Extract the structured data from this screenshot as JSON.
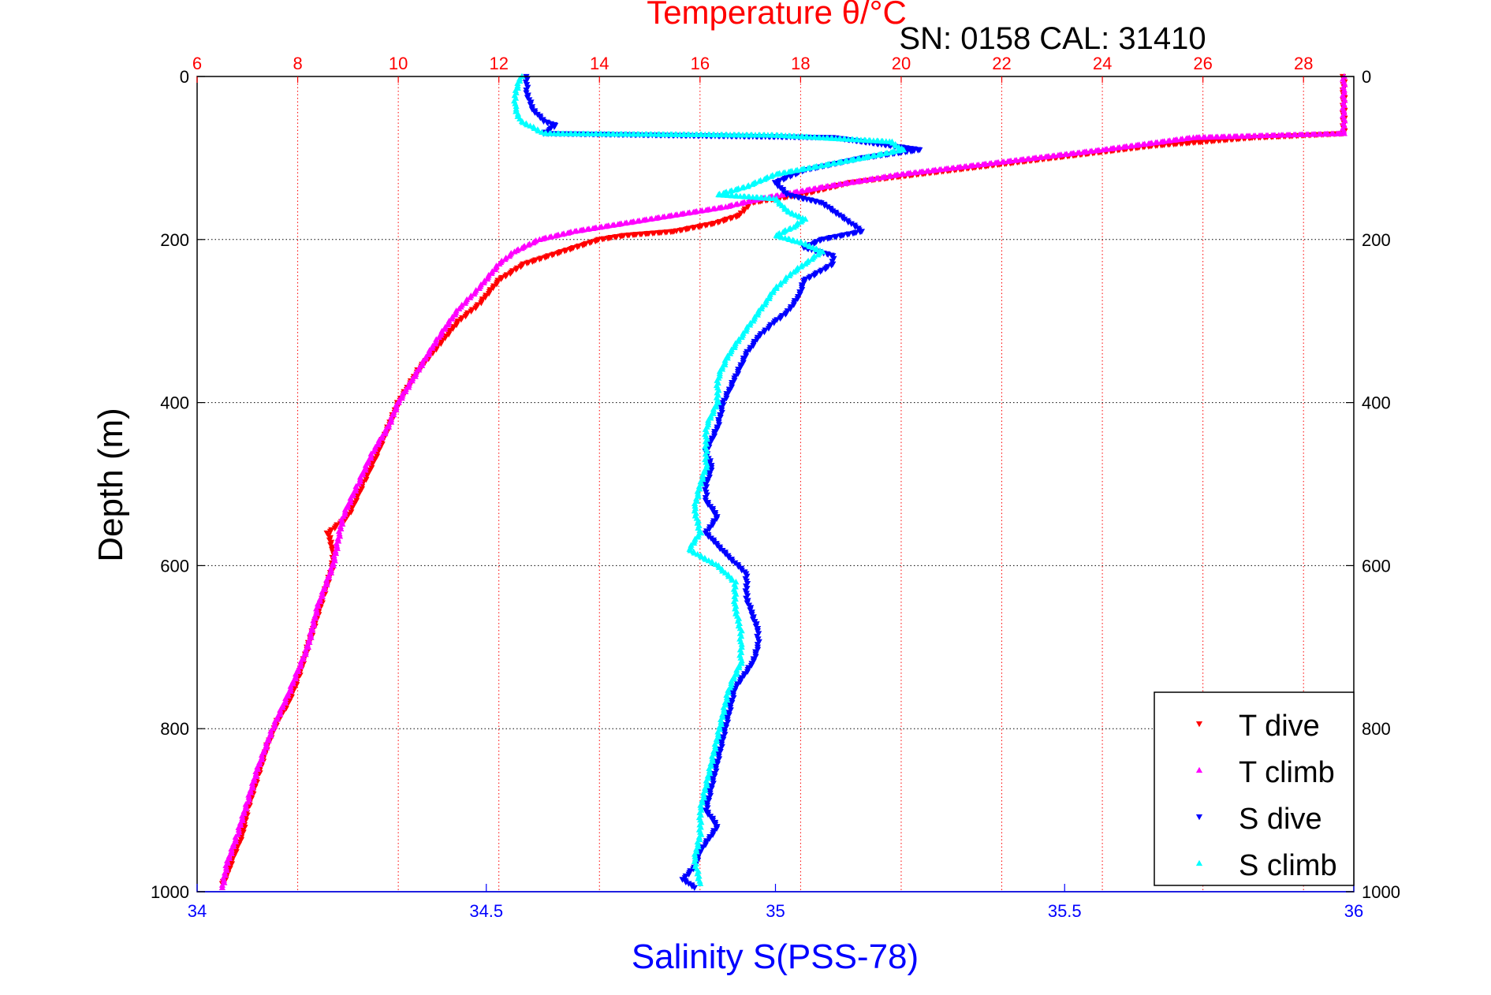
{
  "chart_data": {
    "type": "scatter",
    "title": "Temperature θ/°C",
    "subtitle": "SN: 0158  CAL: 31410",
    "xlabel": "Salinity S(PSS-78)",
    "ylabel": "Depth (m)",
    "depth_range": [
      0,
      1000
    ],
    "depth_inverted": true,
    "depth_ticks": [
      "0",
      "200",
      "400",
      "600",
      "800",
      "1000"
    ],
    "temperature_axis": {
      "position": "top",
      "range": [
        6,
        29
      ],
      "ticks": [
        "6",
        "8",
        "10",
        "12",
        "14",
        "16",
        "18",
        "20",
        "22",
        "24",
        "26",
        "28"
      ],
      "color": "#ff0000"
    },
    "salinity_axis": {
      "position": "bottom",
      "range": [
        34,
        36
      ],
      "ticks": [
        "34",
        "34.5",
        "35",
        "35.5",
        "36"
      ],
      "color": "#0000ff"
    },
    "grid": true,
    "legend_position": "bottom-right",
    "series": [
      {
        "name": "T dive",
        "axis": "temperature",
        "marker": "triangle-down",
        "color": "#ff0000",
        "points": [
          [
            28.8,
            0
          ],
          [
            28.8,
            20
          ],
          [
            28.8,
            45
          ],
          [
            28.8,
            70
          ],
          [
            27.0,
            75
          ],
          [
            25.0,
            85
          ],
          [
            23.0,
            100
          ],
          [
            21.0,
            115
          ],
          [
            19.0,
            130
          ],
          [
            18.0,
            145
          ],
          [
            17.0,
            155
          ],
          [
            16.8,
            170
          ],
          [
            16.3,
            180
          ],
          [
            15.5,
            190
          ],
          [
            14.5,
            195
          ],
          [
            14.0,
            200
          ],
          [
            13.5,
            210
          ],
          [
            13.0,
            220
          ],
          [
            12.5,
            230
          ],
          [
            12.0,
            250
          ],
          [
            11.6,
            280
          ],
          [
            11.2,
            300
          ],
          [
            10.8,
            330
          ],
          [
            10.4,
            360
          ],
          [
            10.0,
            400
          ],
          [
            9.8,
            430
          ],
          [
            9.6,
            460
          ],
          [
            9.3,
            500
          ],
          [
            9.0,
            540
          ],
          [
            8.6,
            560
          ],
          [
            8.7,
            580
          ],
          [
            8.7,
            600
          ],
          [
            8.5,
            640
          ],
          [
            8.3,
            680
          ],
          [
            8.2,
            700
          ],
          [
            8.0,
            740
          ],
          [
            7.8,
            770
          ],
          [
            7.6,
            790
          ],
          [
            7.4,
            820
          ],
          [
            7.2,
            860
          ],
          [
            7.0,
            900
          ],
          [
            6.9,
            930
          ],
          [
            6.7,
            960
          ],
          [
            6.6,
            980
          ],
          [
            6.5,
            990
          ]
        ]
      },
      {
        "name": "T climb",
        "axis": "temperature",
        "marker": "triangle-up",
        "color": "#ff00ff",
        "points": [
          [
            28.8,
            0
          ],
          [
            28.8,
            20
          ],
          [
            28.8,
            45
          ],
          [
            28.8,
            70
          ],
          [
            27.5,
            72
          ],
          [
            25.8,
            75
          ],
          [
            24.0,
            90
          ],
          [
            22.0,
            105
          ],
          [
            20.0,
            120
          ],
          [
            18.5,
            135
          ],
          [
            17.2,
            150
          ],
          [
            16.5,
            160
          ],
          [
            15.5,
            170
          ],
          [
            14.5,
            180
          ],
          [
            14.0,
            185
          ],
          [
            13.5,
            190
          ],
          [
            12.8,
            200
          ],
          [
            12.3,
            215
          ],
          [
            12.0,
            230
          ],
          [
            11.6,
            260
          ],
          [
            11.2,
            285
          ],
          [
            10.8,
            320
          ],
          [
            10.4,
            360
          ],
          [
            10.0,
            400
          ],
          [
            9.8,
            430
          ],
          [
            9.5,
            460
          ],
          [
            9.2,
            500
          ],
          [
            8.9,
            540
          ],
          [
            8.8,
            570
          ],
          [
            8.7,
            600
          ],
          [
            8.4,
            650
          ],
          [
            8.2,
            700
          ],
          [
            8.0,
            730
          ],
          [
            7.8,
            760
          ],
          [
            7.5,
            800
          ],
          [
            7.2,
            850
          ],
          [
            7.0,
            890
          ],
          [
            6.8,
            930
          ],
          [
            6.6,
            965
          ],
          [
            6.5,
            995
          ]
        ]
      },
      {
        "name": "S dive",
        "axis": "salinity",
        "marker": "triangle-down",
        "color": "#0000ff",
        "points": [
          [
            34.57,
            0
          ],
          [
            34.57,
            20
          ],
          [
            34.58,
            40
          ],
          [
            34.6,
            55
          ],
          [
            34.62,
            60
          ],
          [
            34.6,
            70
          ],
          [
            35.1,
            75
          ],
          [
            35.15,
            80
          ],
          [
            35.2,
            85
          ],
          [
            35.25,
            90
          ],
          [
            35.15,
            100
          ],
          [
            35.05,
            115
          ],
          [
            35.0,
            130
          ],
          [
            35.02,
            145
          ],
          [
            35.08,
            155
          ],
          [
            35.1,
            165
          ],
          [
            35.12,
            175
          ],
          [
            35.15,
            190
          ],
          [
            35.08,
            200
          ],
          [
            35.05,
            210
          ],
          [
            35.1,
            220
          ],
          [
            35.1,
            230
          ],
          [
            35.05,
            250
          ],
          [
            35.04,
            270
          ],
          [
            35.02,
            290
          ],
          [
            35.0,
            300
          ],
          [
            34.97,
            320
          ],
          [
            34.95,
            340
          ],
          [
            34.93,
            370
          ],
          [
            34.91,
            400
          ],
          [
            34.9,
            430
          ],
          [
            34.88,
            460
          ],
          [
            34.89,
            480
          ],
          [
            34.88,
            500
          ],
          [
            34.88,
            520
          ],
          [
            34.9,
            540
          ],
          [
            34.88,
            560
          ],
          [
            34.9,
            575
          ],
          [
            34.92,
            590
          ],
          [
            34.95,
            610
          ],
          [
            34.95,
            640
          ],
          [
            34.96,
            660
          ],
          [
            34.97,
            680
          ],
          [
            34.97,
            700
          ],
          [
            34.96,
            720
          ],
          [
            34.93,
            750
          ],
          [
            34.92,
            780
          ],
          [
            34.91,
            810
          ],
          [
            34.9,
            840
          ],
          [
            34.89,
            870
          ],
          [
            34.88,
            900
          ],
          [
            34.9,
            920
          ],
          [
            34.87,
            950
          ],
          [
            34.86,
            970
          ],
          [
            34.84,
            985
          ],
          [
            34.86,
            995
          ]
        ]
      },
      {
        "name": "S climb",
        "axis": "salinity",
        "marker": "triangle-up",
        "color": "#00ffff",
        "points": [
          [
            34.56,
            0
          ],
          [
            34.55,
            20
          ],
          [
            34.55,
            40
          ],
          [
            34.56,
            55
          ],
          [
            34.58,
            62
          ],
          [
            34.6,
            70
          ],
          [
            35.0,
            72
          ],
          [
            35.2,
            80
          ],
          [
            35.22,
            90
          ],
          [
            35.15,
            100
          ],
          [
            35.0,
            120
          ],
          [
            34.95,
            135
          ],
          [
            34.9,
            145
          ],
          [
            35.0,
            150
          ],
          [
            35.02,
            165
          ],
          [
            35.05,
            175
          ],
          [
            35.03,
            185
          ],
          [
            35.0,
            195
          ],
          [
            35.05,
            205
          ],
          [
            35.08,
            215
          ],
          [
            35.05,
            230
          ],
          [
            35.03,
            240
          ],
          [
            35.0,
            260
          ],
          [
            34.98,
            280
          ],
          [
            34.96,
            300
          ],
          [
            34.94,
            320
          ],
          [
            34.92,
            340
          ],
          [
            34.9,
            370
          ],
          [
            34.9,
            400
          ],
          [
            34.88,
            430
          ],
          [
            34.88,
            460
          ],
          [
            34.88,
            480
          ],
          [
            34.87,
            500
          ],
          [
            34.86,
            530
          ],
          [
            34.87,
            560
          ],
          [
            34.85,
            580
          ],
          [
            34.9,
            600
          ],
          [
            34.93,
            620
          ],
          [
            34.93,
            650
          ],
          [
            34.94,
            680
          ],
          [
            34.94,
            700
          ],
          [
            34.94,
            720
          ],
          [
            34.92,
            750
          ],
          [
            34.91,
            780
          ],
          [
            34.9,
            810
          ],
          [
            34.89,
            840
          ],
          [
            34.88,
            870
          ],
          [
            34.87,
            900
          ],
          [
            34.87,
            930
          ],
          [
            34.86,
            960
          ],
          [
            34.87,
            990
          ]
        ]
      }
    ]
  }
}
